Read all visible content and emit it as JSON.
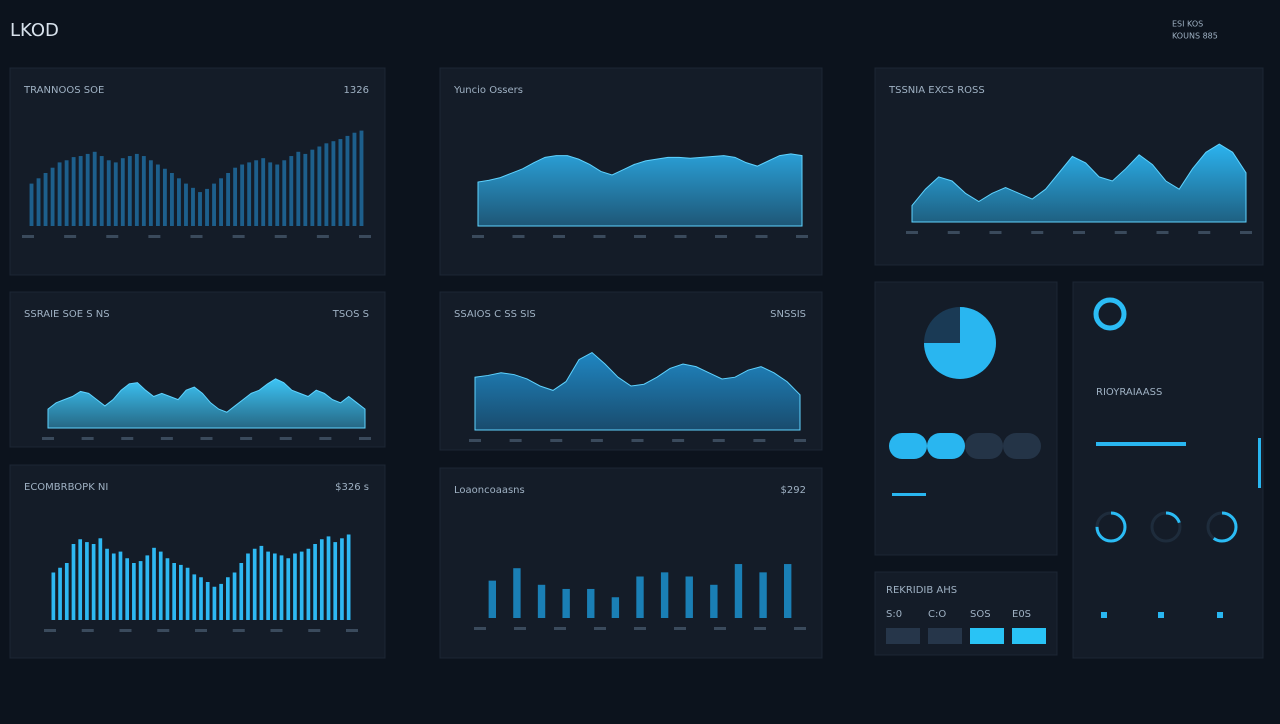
{
  "header": {
    "title": "LKOD",
    "meta": [
      "ESI KOS",
      "KOUNS 885"
    ]
  },
  "panels": [
    {
      "title": "TRANNOOS SOE",
      "value": "1326",
      "type": "bar",
      "color": "#1d5f8c",
      "ylim": [
        0,
        100
      ],
      "values": [
        40,
        45,
        50,
        55,
        60,
        62,
        65,
        66,
        68,
        70,
        66,
        62,
        60,
        64,
        66,
        68,
        66,
        62,
        58,
        54,
        50,
        45,
        40,
        36,
        32,
        35,
        40,
        45,
        50,
        55,
        58,
        60,
        62,
        64,
        60,
        58,
        62,
        66,
        70,
        68,
        72,
        75,
        78,
        80,
        82,
        85,
        88,
        90
      ]
    },
    {
      "title": "Yuncio Ossers",
      "type": "area",
      "color": "#2a9fd6",
      "ylim": [
        0,
        100
      ],
      "values": [
        50,
        52,
        55,
        60,
        65,
        72,
        78,
        80,
        80,
        76,
        70,
        62,
        58,
        64,
        70,
        74,
        76,
        78,
        78,
        77,
        78,
        79,
        80,
        78,
        72,
        68,
        74,
        80,
        82,
        80
      ]
    },
    {
      "title": "TSSNIA EXCS ROSS",
      "type": "area",
      "color": "#2bb3ef",
      "ylim": [
        0,
        100
      ],
      "values": [
        20,
        40,
        55,
        50,
        35,
        25,
        35,
        42,
        35,
        28,
        40,
        60,
        80,
        72,
        55,
        50,
        65,
        82,
        70,
        50,
        40,
        65,
        85,
        95,
        85,
        60
      ]
    },
    {
      "title": "SSRAIE SOE S NS",
      "value": "TSOS S",
      "type": "area",
      "color": "#3cc4f5",
      "ylim": [
        0,
        100
      ],
      "values": [
        30,
        40,
        45,
        50,
        58,
        55,
        45,
        35,
        45,
        60,
        70,
        72,
        60,
        50,
        55,
        50,
        45,
        60,
        65,
        55,
        40,
        30,
        25,
        35,
        45,
        55,
        60,
        70,
        78,
        72,
        60,
        55,
        50,
        60,
        55,
        45,
        40,
        50,
        40,
        30
      ]
    },
    {
      "title": "SSAIOS C SS SIS",
      "value": "SNSSIS",
      "type": "area",
      "color": "#1f86c2",
      "ylim": [
        0,
        100
      ],
      "values": [
        60,
        62,
        65,
        63,
        58,
        50,
        45,
        55,
        80,
        88,
        75,
        60,
        50,
        52,
        60,
        70,
        75,
        72,
        65,
        58,
        60,
        68,
        72,
        65,
        55,
        40
      ]
    },
    {
      "title": "ECOMBRBOPK NI",
      "value": "$326 s",
      "type": "bar",
      "color": "#2eb8f2",
      "ylim": [
        0,
        100
      ],
      "values": [
        50,
        55,
        60,
        80,
        85,
        82,
        80,
        86,
        75,
        70,
        72,
        65,
        60,
        62,
        68,
        76,
        72,
        65,
        60,
        58,
        55,
        48,
        45,
        40,
        35,
        38,
        45,
        50,
        60,
        70,
        75,
        78,
        72,
        70,
        68,
        65,
        70,
        72,
        75,
        80,
        85,
        88,
        82,
        86,
        90
      ]
    },
    {
      "title": "Loaoncoaasns",
      "value": "$292",
      "type": "bar",
      "color": "#1a7fb5",
      "ylim": [
        0,
        100
      ],
      "values": [
        45,
        60,
        40,
        35,
        35,
        25,
        50,
        55,
        50,
        40,
        65,
        55,
        65
      ]
    }
  ],
  "pie": {
    "value": 75,
    "color": "#29b6f0"
  },
  "buttons": {
    "title": "REKRIDIB AHS",
    "labels": [
      "S:0",
      "C:O",
      "SOS",
      "E0S"
    ]
  },
  "gauges": {
    "title": "RIOYRAIAASS",
    "values": [
      100,
      75,
      20,
      60
    ],
    "color": "#2bbcf5"
  }
}
